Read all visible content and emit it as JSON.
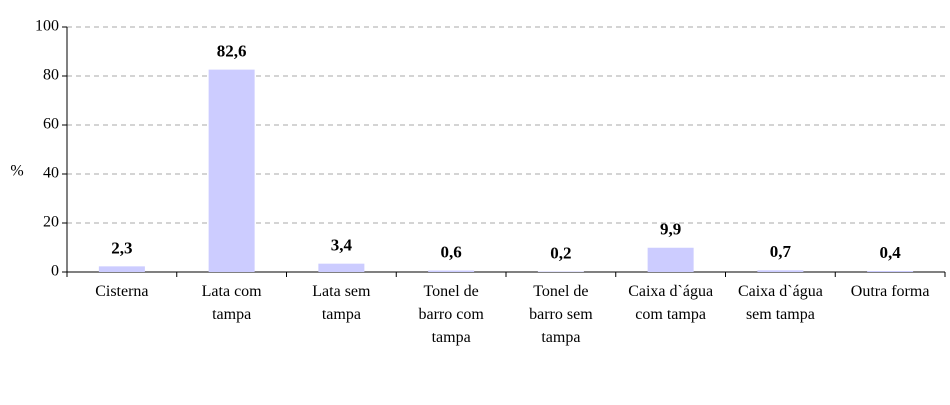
{
  "chart_data": {
    "type": "bar",
    "y_label": "%",
    "categories": [
      "Cisterna",
      "Lata com tampa",
      "Lata sem tampa",
      "Tonel de barro com tampa",
      "Tonel de barro sem tampa",
      "Caixa d`água com tampa",
      "Caixa d`água sem tampa",
      "Outra forma"
    ],
    "values": [
      2.3,
      82.6,
      3.4,
      0.6,
      0.2,
      9.9,
      0.7,
      0.4
    ],
    "value_labels": [
      "2,3",
      "82,6",
      "3,4",
      "0,6",
      "0,2",
      "9,9",
      "0,7",
      "0,4"
    ],
    "color": "#ccccff",
    "ylim": [
      0,
      100
    ],
    "yticks": [
      0,
      20,
      40,
      60,
      80,
      100
    ],
    "grid": true
  }
}
